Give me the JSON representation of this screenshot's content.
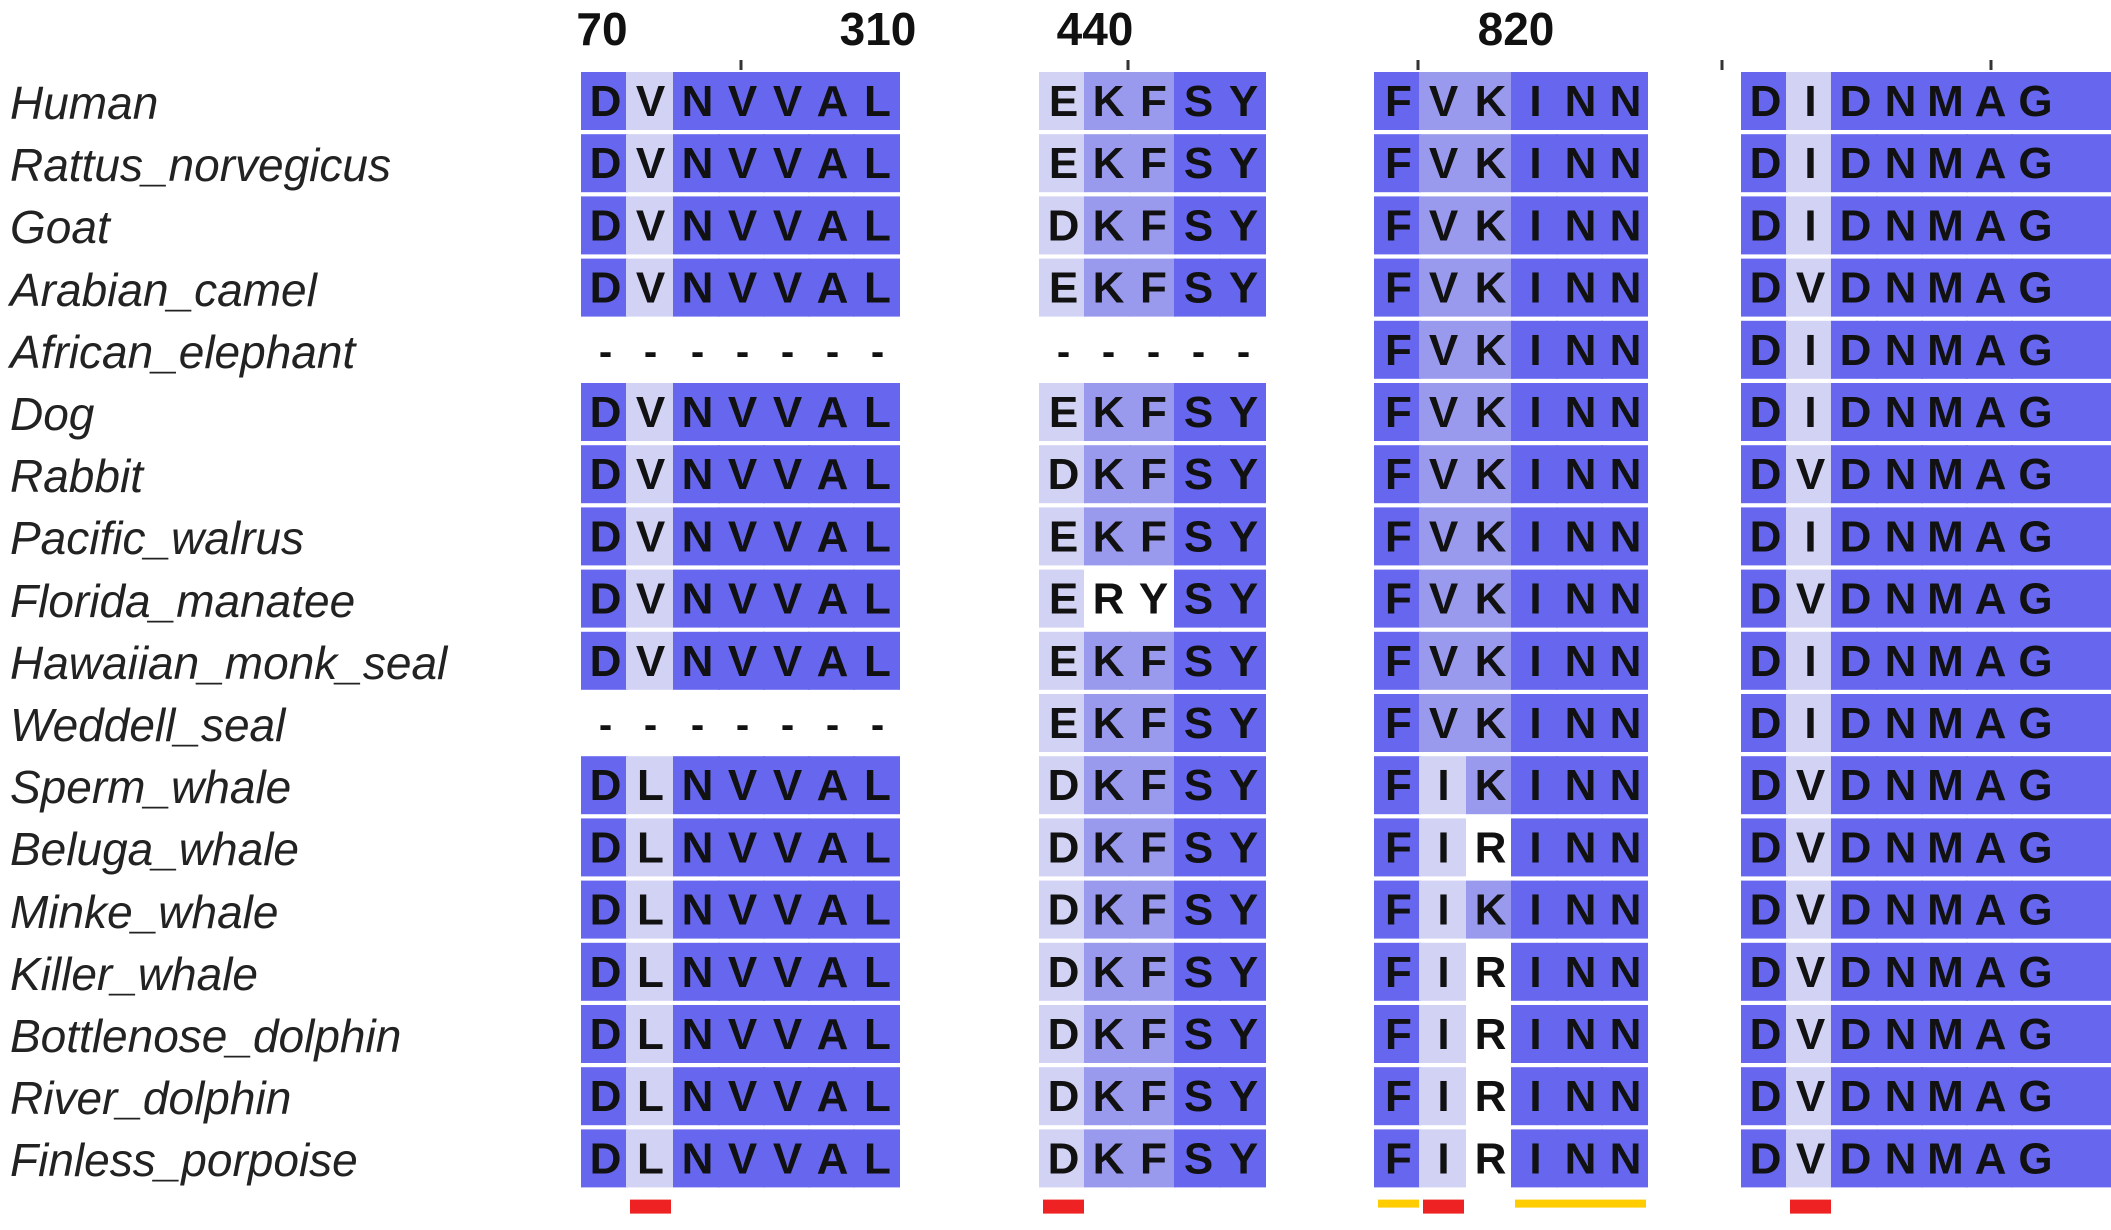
{
  "positions": [
    "70",
    "310",
    "440",
    "820"
  ],
  "species": [
    {
      "name": "Human",
      "blocks": [
        "DVNVVAL",
        "EKFSY",
        "FVKINN",
        "DIDNMAG"
      ]
    },
    {
      "name": "Rattus_norvegicus",
      "blocks": [
        "DVNVVAL",
        "EKFSY",
        "FVKINN",
        "DIDNMAG"
      ]
    },
    {
      "name": "Goat",
      "blocks": [
        "DVNVVAL",
        "DKFSY",
        "FVKINN",
        "DIDNMAG"
      ]
    },
    {
      "name": "Arabian_camel",
      "blocks": [
        "DVNVVAL",
        "EKFSY",
        "FVKINN",
        "DVDNMAG"
      ]
    },
    {
      "name": "African_elephant",
      "blocks": [
        "-------",
        "-----",
        "FVKINN",
        "DIDNMAG"
      ]
    },
    {
      "name": "Dog",
      "blocks": [
        "DVNVVAL",
        "EKFSY",
        "FVKINN",
        "DIDNMAG"
      ]
    },
    {
      "name": "Rabbit",
      "blocks": [
        "DVNVVAL",
        "DKFSY",
        "FVKINN",
        "DVDNMAG"
      ]
    },
    {
      "name": "Pacific_walrus",
      "blocks": [
        "DVNVVAL",
        "EKFSY",
        "FVKINN",
        "DIDNMAG"
      ]
    },
    {
      "name": "Florida_manatee",
      "blocks": [
        "DVNVVAL",
        "ERYSY",
        "FVKINN",
        "DVDNMAG"
      ]
    },
    {
      "name": "Hawaiian_monk_seal",
      "blocks": [
        "DVNVVAL",
        "EKFSY",
        "FVKINN",
        "DIDNMAG"
      ]
    },
    {
      "name": "Weddell_seal",
      "blocks": [
        "-------",
        "EKFSY",
        "FVKINN",
        "DIDNMAG"
      ]
    },
    {
      "name": "Sperm_whale",
      "blocks": [
        "DLNVVAL",
        "DKFSY",
        "FIKINN",
        "DVDNMAG"
      ]
    },
    {
      "name": "Beluga_whale",
      "blocks": [
        "DLNVVAL",
        "DKFSY",
        "FIRINN",
        "DVDNMAG"
      ]
    },
    {
      "name": "Minke_whale",
      "blocks": [
        "DLNVVAL",
        "DKFSY",
        "FIKINN",
        "DVDNMAG"
      ]
    },
    {
      "name": "Killer_whale",
      "blocks": [
        "DLNVVAL",
        "DKFSY",
        "FIRINN",
        "DVDNMAG"
      ]
    },
    {
      "name": "Bottlenose_dolphin",
      "blocks": [
        "DLNVVAL",
        "DKFSY",
        "FIRINN",
        "DVDNMAG"
      ]
    },
    {
      "name": "River_dolphin",
      "blocks": [
        "DLNVVAL",
        "DKFSY",
        "FIRINN",
        "DVDNMAG"
      ]
    },
    {
      "name": "Finless_porpoise",
      "blocks": [
        "DLNVVAL",
        "DKFSY",
        "FIRINN",
        "DVDNMAG"
      ]
    }
  ],
  "colors": {
    "conserved": "#6666ee",
    "variable_light": "#d2d2f5",
    "variable_medium": "#9999ee",
    "marker_red": "#ee2222",
    "marker_yellow": "#ffcc00",
    "residue_text": "#111111"
  },
  "site_markers": [
    {
      "block": 0,
      "column": 1,
      "color": "marker_red"
    },
    {
      "block": 1,
      "column": 0,
      "color": "marker_red"
    },
    {
      "block": 2,
      "column": 0,
      "color": "marker_yellow"
    },
    {
      "block": 2,
      "column": 1,
      "color": "marker_red"
    },
    {
      "block": 2,
      "column": 3,
      "span": 3,
      "color": "marker_yellow"
    },
    {
      "block": 3,
      "column": 1,
      "color": "marker_red"
    }
  ]
}
